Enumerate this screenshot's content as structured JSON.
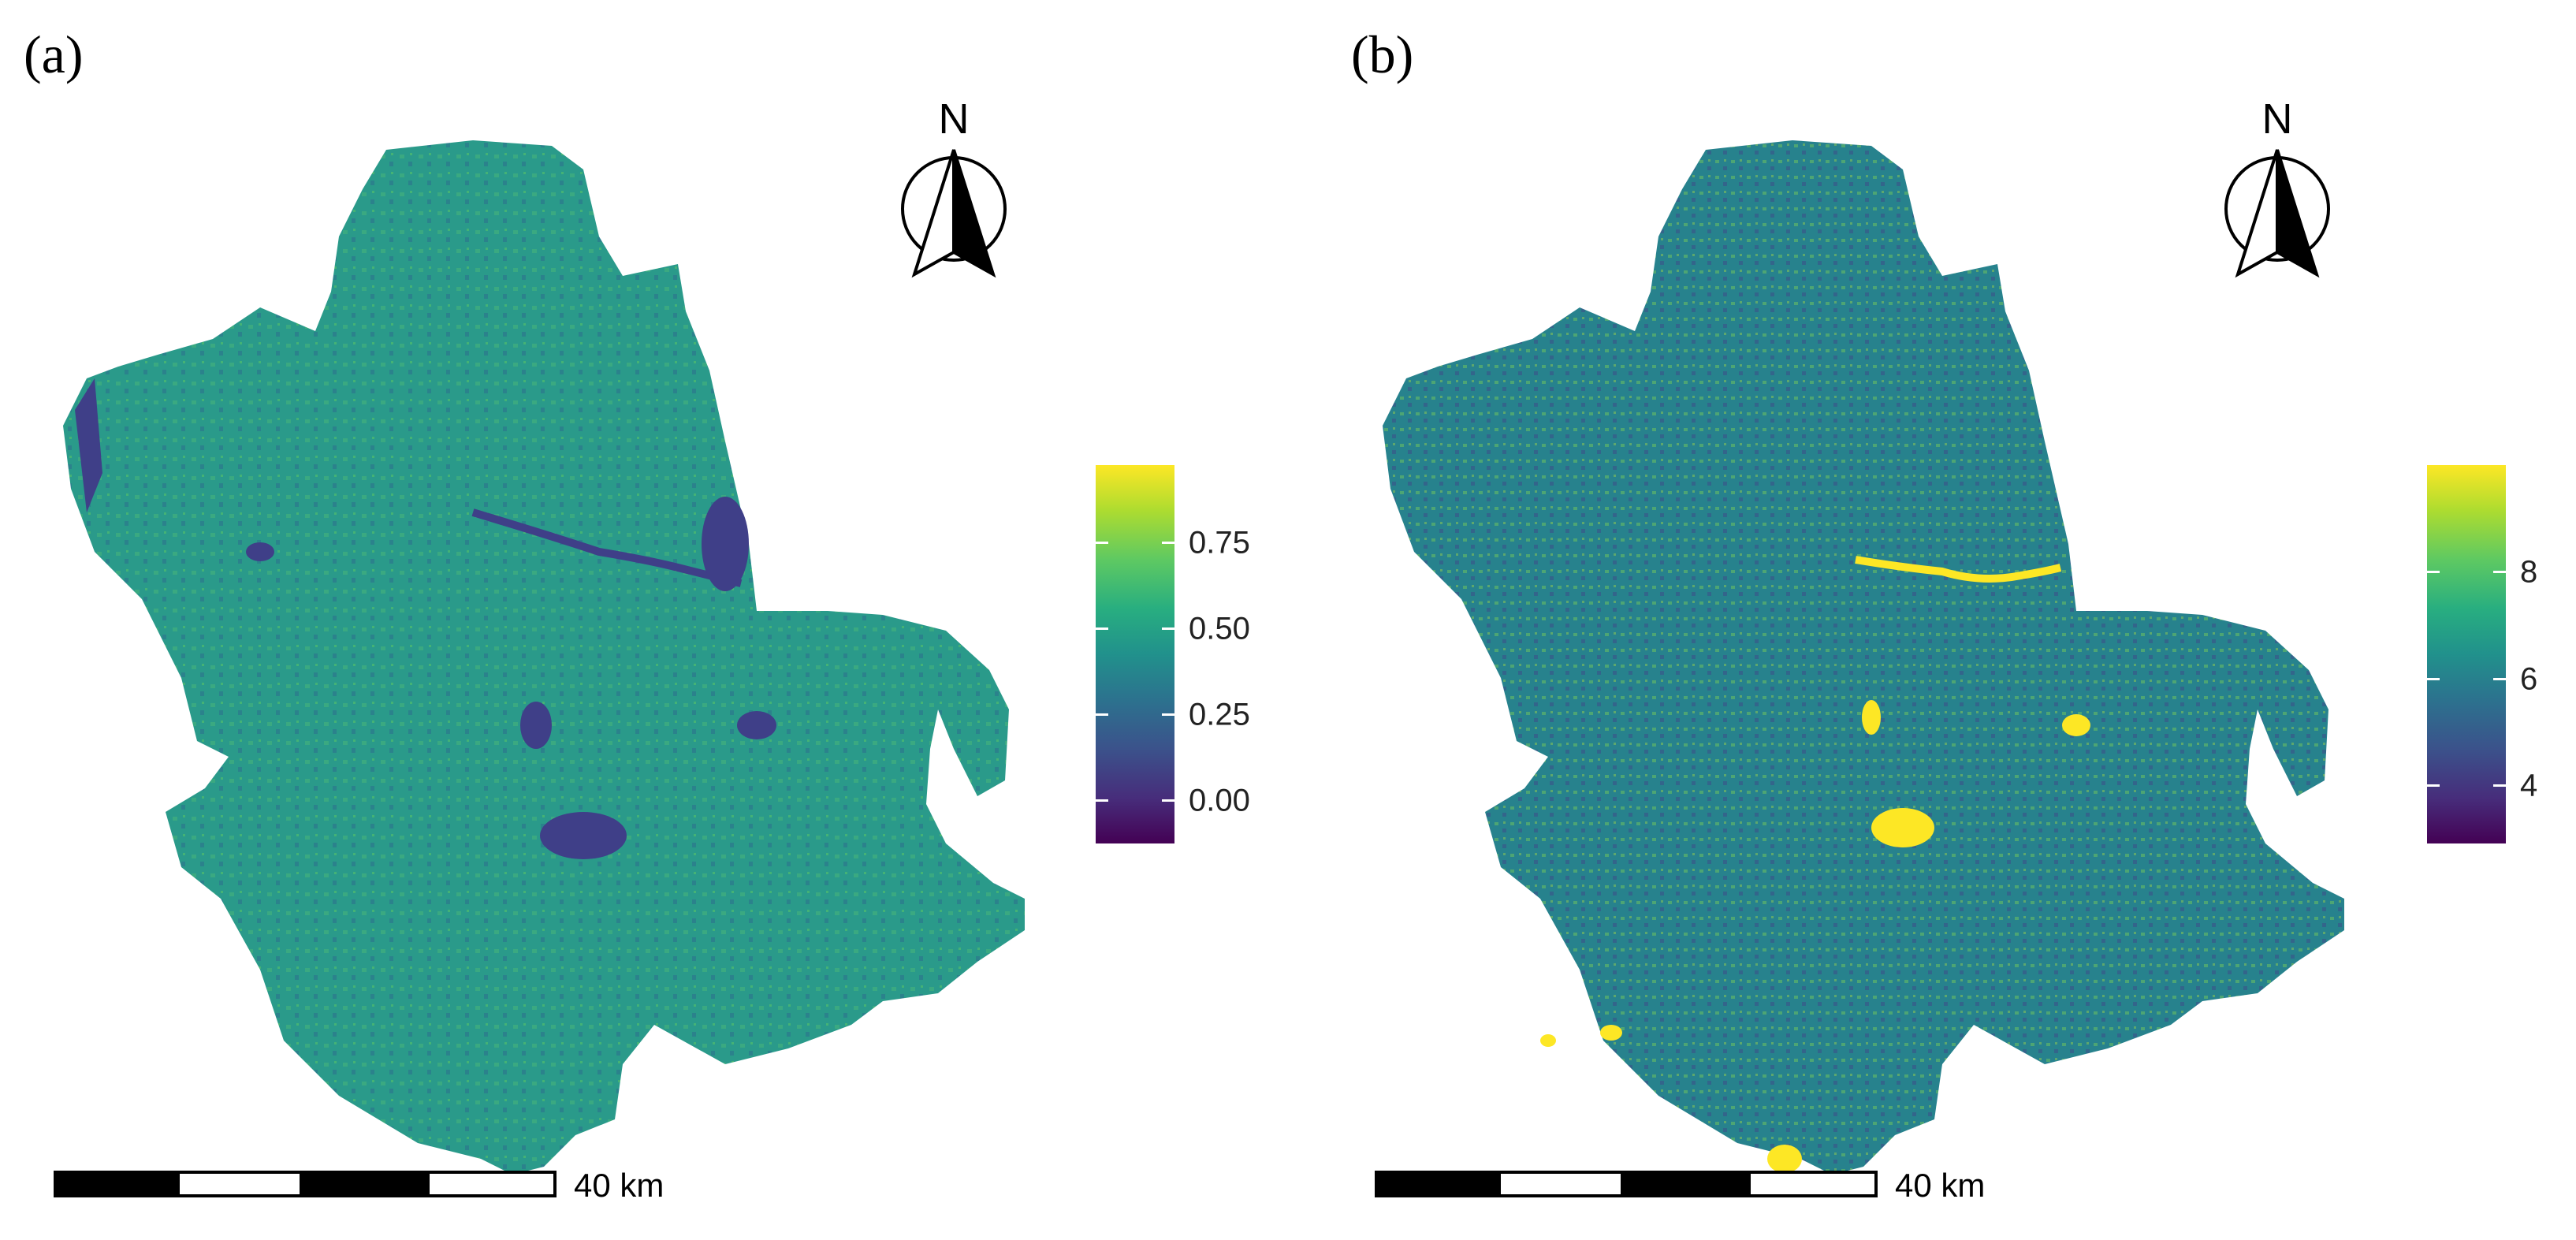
{
  "panels": [
    {
      "label": "(a)",
      "north_label": "N",
      "legend": {
        "ticks": [
          "0.75",
          "0.50",
          "0.25",
          "0.00"
        ],
        "tick_values": [
          0.75,
          0.5,
          0.25,
          0.0
        ],
        "range": [
          -0.15,
          0.95
        ],
        "colormap": "viridis"
      },
      "scalebar_label": "40 km",
      "map_fill": "#2a9a8a",
      "map_highlight": "#44b27c",
      "map_water": "#3f3f88"
    },
    {
      "label": "(b)",
      "north_label": "N",
      "legend": {
        "ticks": [
          "8",
          "6",
          "4"
        ],
        "tick_values": [
          8,
          6,
          4
        ],
        "range": [
          2.8,
          9.9
        ],
        "colormap": "viridis"
      },
      "scalebar_label": "40 km",
      "map_fill": "#27828d",
      "map_highlight": "#6cc05e",
      "map_water": "#fde725"
    }
  ]
}
